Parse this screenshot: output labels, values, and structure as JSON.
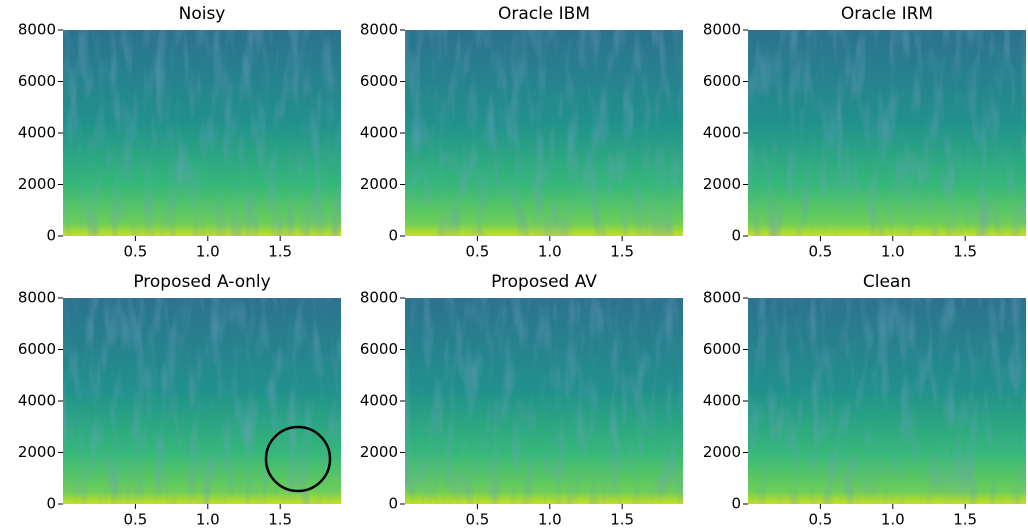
{
  "chart_data": [
    {
      "type": "spectrogram",
      "title": "Noisy",
      "xlim": [
        0,
        1.92
      ],
      "ylim": [
        0,
        8000
      ],
      "xticks": [
        0.5,
        {
          "value": 1,
          "label": "1.0"
        },
        1.5
      ],
      "yticks": [
        0,
        2000,
        4000,
        6000,
        8000
      ]
    },
    {
      "type": "spectrogram",
      "title": "Oracle IBM",
      "xlim": [
        0,
        1.92
      ],
      "ylim": [
        0,
        8000
      ],
      "xticks": [
        0.5,
        {
          "value": 1,
          "label": "1.0"
        },
        1.5
      ],
      "yticks": [
        0,
        2000,
        4000,
        6000,
        8000
      ]
    },
    {
      "type": "spectrogram",
      "title": "Oracle IRM",
      "xlim": [
        0,
        1.92
      ],
      "ylim": [
        0,
        8000
      ],
      "xticks": [
        0.5,
        {
          "value": 1,
          "label": "1.0"
        },
        1.5
      ],
      "yticks": [
        0,
        2000,
        4000,
        6000,
        8000
      ]
    },
    {
      "type": "spectrogram",
      "title": "Proposed A-only",
      "xlim": [
        0,
        1.92
      ],
      "ylim": [
        0,
        8000
      ],
      "xticks": [
        0.5,
        {
          "value": 1,
          "label": "1.0"
        },
        1.5
      ],
      "yticks": [
        0,
        2000,
        4000,
        6000,
        8000
      ]
    },
    {
      "type": "spectrogram",
      "title": "Proposed AV",
      "xlim": [
        0,
        1.92
      ],
      "ylim": [
        0,
        8000
      ],
      "xticks": [
        0.5,
        {
          "value": 1,
          "label": "1.0"
        },
        1.5
      ],
      "yticks": [
        0,
        2000,
        4000,
        6000,
        8000
      ]
    },
    {
      "type": "spectrogram",
      "title": "Clean",
      "xlim": [
        0,
        1.92
      ],
      "ylim": [
        0,
        8000
      ],
      "xticks": [
        0.5,
        {
          "value": 1,
          "label": "1.0"
        },
        1.5
      ],
      "yticks": [
        0,
        2000,
        4000,
        6000,
        8000
      ]
    }
  ]
}
